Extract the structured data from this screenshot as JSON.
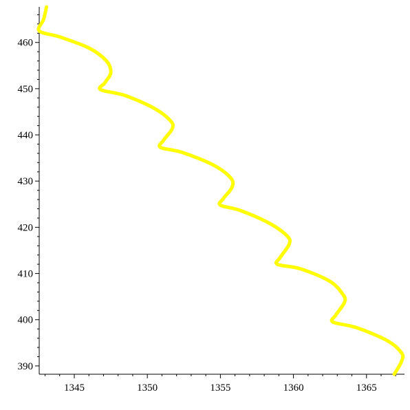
{
  "chart_data": {
    "type": "line",
    "title": "",
    "xlabel": "",
    "ylabel": "",
    "xlim": [
      1342.6,
      1367.6
    ],
    "ylim": [
      388.2,
      467.7
    ],
    "xticks": [
      1345,
      1350,
      1355,
      1360,
      1365
    ],
    "yticks": [
      390,
      400,
      410,
      420,
      430,
      440,
      450,
      460
    ],
    "grid": false,
    "series": [
      {
        "color": "#ffff00",
        "x": [
          1343.1,
          1342.9,
          1342.6,
          1344.0,
          1346.0,
          1347.2,
          1347.5,
          1347.1,
          1346.8,
          1348.5,
          1350.5,
          1351.6,
          1351.7,
          1351.1,
          1350.9,
          1352.4,
          1354.5,
          1355.7,
          1355.8,
          1355.2,
          1355.0,
          1356.4,
          1358.4,
          1359.6,
          1359.7,
          1359.1,
          1358.9,
          1360.5,
          1362.5,
          1363.4,
          1363.5,
          1362.9,
          1362.7,
          1364.3,
          1366.4,
          1367.4,
          1367.4,
          1366.9
        ],
        "y": [
          467.7,
          465.0,
          462.5,
          461.2,
          458.8,
          456.0,
          453.5,
          451.3,
          449.8,
          448.5,
          445.7,
          443.0,
          441.3,
          438.8,
          437.3,
          436.2,
          433.5,
          430.7,
          428.7,
          426.2,
          424.8,
          423.6,
          420.8,
          418.0,
          416.3,
          413.5,
          412.0,
          411.0,
          408.3,
          405.4,
          403.8,
          401.0,
          399.5,
          398.3,
          395.5,
          392.8,
          391.0,
          388.2
        ]
      }
    ]
  }
}
